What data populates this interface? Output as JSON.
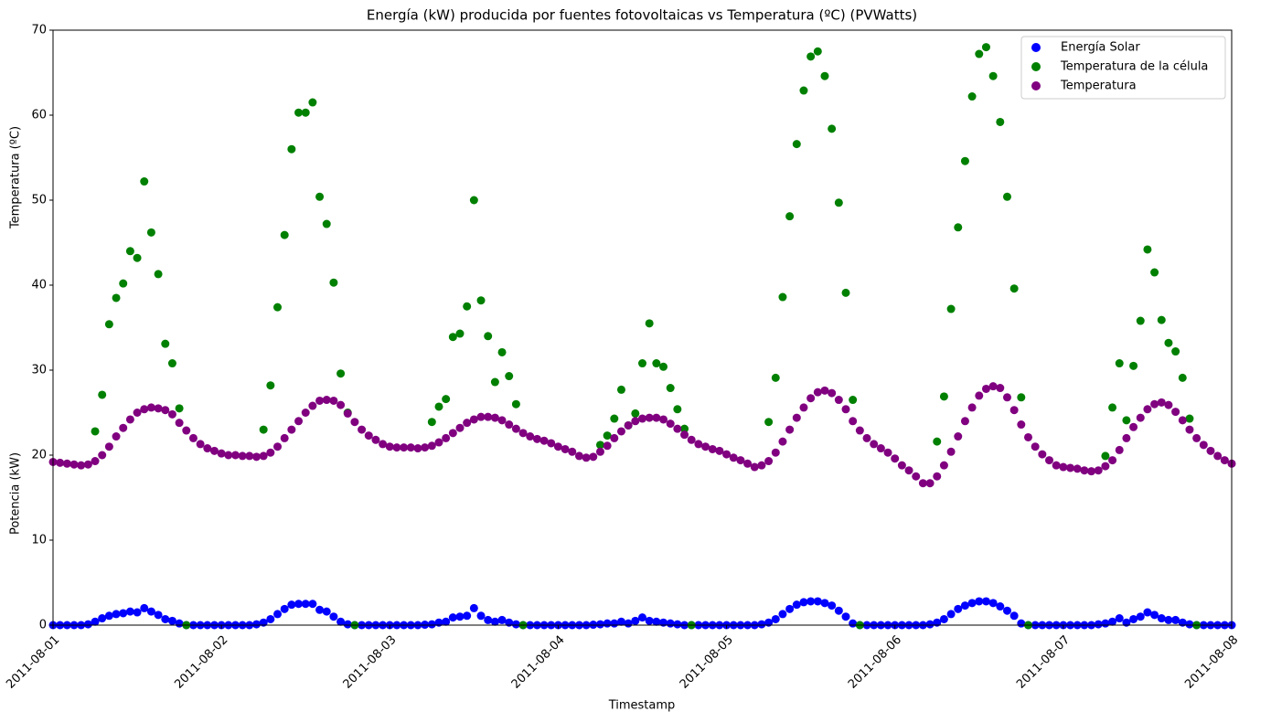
{
  "chart_data": {
    "type": "scatter",
    "title": "Energía (kW) producida por fuentes fotovoltaicas vs Temperatura (ºC) (PVWatts)",
    "x_label": "Timestamp",
    "y_labels": [
      "Temperatura (ºC)",
      "Potencia (kW)"
    ],
    "xlim": [
      0,
      168
    ],
    "xticks": [
      {
        "value": 0,
        "label": "2011-08-01"
      },
      {
        "value": 24,
        "label": "2011-08-02"
      },
      {
        "value": 48,
        "label": "2011-08-03"
      },
      {
        "value": 72,
        "label": "2011-08-04"
      },
      {
        "value": 96,
        "label": "2011-08-05"
      },
      {
        "value": 120,
        "label": "2011-08-06"
      },
      {
        "value": 144,
        "label": "2011-08-07"
      },
      {
        "value": 168,
        "label": "2011-08-08"
      }
    ],
    "ylim": [
      0,
      70
    ],
    "yticks": [
      0,
      10,
      20,
      30,
      40,
      50,
      60,
      70
    ],
    "legend": "upper right",
    "x": [
      0,
      1,
      2,
      3,
      4,
      5,
      6,
      7,
      8,
      9,
      10,
      11,
      12,
      13,
      14,
      15,
      16,
      17,
      18,
      19,
      20,
      21,
      22,
      23,
      24,
      25,
      26,
      27,
      28,
      29,
      30,
      31,
      32,
      33,
      34,
      35,
      36,
      37,
      38,
      39,
      40,
      41,
      42,
      43,
      44,
      45,
      46,
      47,
      48,
      49,
      50,
      51,
      52,
      53,
      54,
      55,
      56,
      57,
      58,
      59,
      60,
      61,
      62,
      63,
      64,
      65,
      66,
      67,
      68,
      69,
      70,
      71,
      72,
      73,
      74,
      75,
      76,
      77,
      78,
      79,
      80,
      81,
      82,
      83,
      84,
      85,
      86,
      87,
      88,
      89,
      90,
      91,
      92,
      93,
      94,
      95,
      96,
      97,
      98,
      99,
      100,
      101,
      102,
      103,
      104,
      105,
      106,
      107,
      108,
      109,
      110,
      111,
      112,
      113,
      114,
      115,
      116,
      117,
      118,
      119,
      120,
      121,
      122,
      123,
      124,
      125,
      126,
      127,
      128,
      129,
      130,
      131,
      132,
      133,
      134,
      135,
      136,
      137,
      138,
      139,
      140,
      141,
      142,
      143,
      144,
      145,
      146,
      147,
      148,
      149,
      150,
      151,
      152,
      153,
      154,
      155,
      156,
      157,
      158,
      159,
      160,
      161,
      162,
      163,
      164,
      165,
      166,
      167,
      168
    ],
    "series": [
      {
        "name": "Energía Solar",
        "color": "#0000ff",
        "values": [
          0,
          0,
          0,
          0,
          0,
          0.1,
          0.4,
          0.8,
          1.1,
          1.3,
          1.4,
          1.6,
          1.5,
          2.0,
          1.6,
          1.2,
          0.7,
          0.5,
          0.2,
          0,
          0,
          0,
          0,
          0,
          0,
          0,
          0,
          0,
          0,
          0.1,
          0.3,
          0.7,
          1.3,
          1.9,
          2.4,
          2.5,
          2.5,
          2.5,
          1.8,
          1.6,
          1.0,
          0.4,
          0.1,
          0,
          0,
          0,
          0,
          0,
          0,
          0,
          0,
          0,
          0,
          0.05,
          0.1,
          0.3,
          0.4,
          0.9,
          1.0,
          1.1,
          2.0,
          1.1,
          0.6,
          0.4,
          0.6,
          0.3,
          0.1,
          0,
          0,
          0,
          0,
          0,
          0,
          0,
          0,
          0,
          0,
          0.05,
          0.1,
          0.2,
          0.2,
          0.4,
          0.2,
          0.5,
          0.9,
          0.5,
          0.4,
          0.3,
          0.2,
          0.1,
          0,
          0,
          0,
          0,
          0,
          0,
          0,
          0,
          0,
          0,
          0,
          0.1,
          0.3,
          0.7,
          1.3,
          1.9,
          2.4,
          2.7,
          2.8,
          2.8,
          2.6,
          2.3,
          1.7,
          1.0,
          0.2,
          0,
          0,
          0,
          0,
          0,
          0,
          0,
          0,
          0,
          0,
          0.1,
          0.3,
          0.7,
          1.3,
          1.9,
          2.3,
          2.6,
          2.8,
          2.8,
          2.6,
          2.2,
          1.7,
          1.1,
          0.2,
          0,
          0,
          0,
          0,
          0,
          0,
          0,
          0,
          0,
          0,
          0.1,
          0.2,
          0.4,
          0.8,
          0.3,
          0.7,
          1.0,
          1.5,
          1.2,
          0.8,
          0.6,
          0.6,
          0.3,
          0.1,
          0,
          0,
          0,
          0,
          0,
          0
        ]
      },
      {
        "name": "Temperatura de la célula",
        "color": "#008000",
        "values": [
          null,
          null,
          null,
          null,
          null,
          null,
          22.8,
          27.1,
          35.4,
          38.5,
          40.2,
          44,
          43.2,
          52.2,
          46.2,
          41.3,
          33.1,
          30.8,
          25.5,
          0,
          null,
          null,
          null,
          null,
          null,
          null,
          null,
          null,
          null,
          null,
          23.0,
          28.2,
          37.4,
          45.9,
          56.0,
          60.3,
          60.3,
          61.5,
          50.4,
          47.2,
          40.3,
          29.6,
          25.0,
          0,
          null,
          null,
          null,
          null,
          null,
          null,
          null,
          null,
          null,
          null,
          23.9,
          25.7,
          26.6,
          33.9,
          34.3,
          37.5,
          50.0,
          38.2,
          34.0,
          28.6,
          32.1,
          29.3,
          26.0,
          0,
          null,
          null,
          null,
          null,
          null,
          null,
          null,
          null,
          null,
          null,
          21.2,
          22.3,
          24.3,
          27.7,
          23.5,
          24.9,
          30.8,
          35.5,
          30.8,
          30.4,
          27.9,
          25.4,
          23.1,
          0,
          null,
          null,
          null,
          null,
          null,
          null,
          null,
          null,
          null,
          null,
          23.9,
          29.1,
          38.6,
          48.1,
          56.6,
          62.9,
          66.9,
          67.5,
          64.6,
          58.4,
          49.7,
          39.1,
          26.5,
          0,
          null,
          null,
          null,
          null,
          null,
          null,
          null,
          null,
          null,
          null,
          21.6,
          26.9,
          37.2,
          46.8,
          54.6,
          62.2,
          67.2,
          68.0,
          64.6,
          59.2,
          50.4,
          39.6,
          26.8,
          0,
          null,
          null,
          null,
          null,
          null,
          null,
          null,
          null,
          null,
          null,
          19.9,
          25.6,
          30.8,
          24.1,
          30.5,
          35.8,
          44.2,
          41.5,
          35.9,
          33.2,
          32.2,
          29.1,
          24.3,
          0,
          null,
          null,
          null,
          null,
          null
        ]
      },
      {
        "name": "Temperatura",
        "color": "#800080",
        "values": [
          19.2,
          19.1,
          19.0,
          18.9,
          18.8,
          18.9,
          19.3,
          20.0,
          21.0,
          22.2,
          23.2,
          24.2,
          25.0,
          25.4,
          25.6,
          25.5,
          25.3,
          24.8,
          23.8,
          22.9,
          22.0,
          21.3,
          20.8,
          20.5,
          20.2,
          20.0,
          20.0,
          19.9,
          19.9,
          19.8,
          19.9,
          20.3,
          21.0,
          22.0,
          23.0,
          24.0,
          25.0,
          25.8,
          26.4,
          26.5,
          26.4,
          25.9,
          24.9,
          23.9,
          23.0,
          22.3,
          21.8,
          21.3,
          21.0,
          20.9,
          20.9,
          20.9,
          20.8,
          20.9,
          21.1,
          21.5,
          22.0,
          22.6,
          23.2,
          23.8,
          24.2,
          24.5,
          24.5,
          24.4,
          24.1,
          23.6,
          23.1,
          22.6,
          22.2,
          21.9,
          21.7,
          21.4,
          21.0,
          20.7,
          20.4,
          19.9,
          19.7,
          19.8,
          20.4,
          21.1,
          22.0,
          22.8,
          23.5,
          24.0,
          24.3,
          24.4,
          24.4,
          24.2,
          23.7,
          23.1,
          22.4,
          21.8,
          21.3,
          21.0,
          20.7,
          20.5,
          20.1,
          19.7,
          19.4,
          19.0,
          18.6,
          18.8,
          19.3,
          20.3,
          21.6,
          23.0,
          24.4,
          25.6,
          26.7,
          27.4,
          27.6,
          27.3,
          26.5,
          25.4,
          24.0,
          22.9,
          22.0,
          21.3,
          20.8,
          20.3,
          19.6,
          18.8,
          18.2,
          17.5,
          16.7,
          16.7,
          17.5,
          18.8,
          20.4,
          22.2,
          24.0,
          25.6,
          27.0,
          27.8,
          28.1,
          27.9,
          26.8,
          25.3,
          23.6,
          22.1,
          21.0,
          20.1,
          19.4,
          18.8,
          18.6,
          18.5,
          18.4,
          18.2,
          18.1,
          18.2,
          18.7,
          19.4,
          20.6,
          22.0,
          23.3,
          24.4,
          25.4,
          26.0,
          26.2,
          25.9,
          25.1,
          24.1,
          23.0,
          22.0,
          21.2,
          20.5,
          19.9,
          19.4,
          19.0
        ]
      }
    ]
  }
}
